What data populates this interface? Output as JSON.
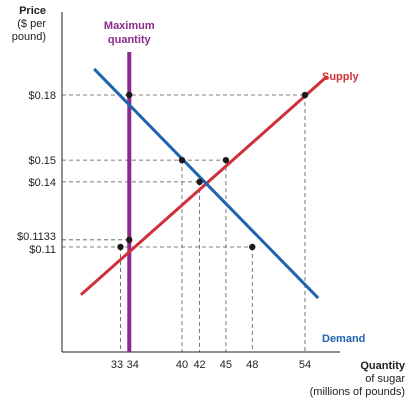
{
  "chart_data": {
    "type": "line",
    "xlabel": [
      "Quantity",
      "of sugar",
      "(millions of pounds)"
    ],
    "ylabel": [
      "Price",
      "($ per",
      "pound)"
    ],
    "xlim": [
      27,
      63
    ],
    "ylim": [
      0.08,
      0.195
    ],
    "x_ticks": [
      {
        "value": 33,
        "label": "33"
      },
      {
        "value": 34,
        "label": "34"
      },
      {
        "value": 40,
        "label": "40"
      },
      {
        "value": 42,
        "label": "42"
      },
      {
        "value": 45,
        "label": "45"
      },
      {
        "value": 48,
        "label": "48"
      },
      {
        "value": 54,
        "label": "54"
      }
    ],
    "y_ticks": [
      {
        "value": 0.18,
        "label": "$0.18"
      },
      {
        "value": 0.15,
        "label": "$0.15"
      },
      {
        "value": 0.14,
        "label": "$0.14"
      },
      {
        "value": 0.1133,
        "label": "$0.1133"
      },
      {
        "value": 0.11,
        "label": "$0.11"
      }
    ],
    "series": [
      {
        "name": "Supply",
        "color": "#d0303a",
        "x": [
          28.5,
          56.5
        ],
        "y": [
          0.088,
          0.1885
        ]
      },
      {
        "name": "Demand",
        "color": "#1d63b0",
        "x": [
          30,
          55.5
        ],
        "y": [
          0.192,
          0.0865
        ]
      }
    ],
    "vertical_line": {
      "name": [
        "Maximum",
        "quantity"
      ],
      "x": 34,
      "color": "#8a2a8a"
    },
    "points": [
      {
        "x": 54,
        "y": 0.18
      },
      {
        "x": 34,
        "y": 0.18
      },
      {
        "x": 40,
        "y": 0.15
      },
      {
        "x": 45,
        "y": 0.15
      },
      {
        "x": 42,
        "y": 0.14
      },
      {
        "x": 34,
        "y": 0.1133
      },
      {
        "x": 33,
        "y": 0.11
      },
      {
        "x": 48,
        "y": 0.11
      }
    ],
    "guides": [
      {
        "h": 0.18,
        "from": 0,
        "to": 54
      },
      {
        "h": 0.15,
        "from": 0,
        "to": 45
      },
      {
        "h": 0.14,
        "from": 0,
        "to": 42
      },
      {
        "h": 0.1133,
        "from": 0,
        "to": 34
      },
      {
        "h": 0.11,
        "from": 0,
        "to": 48
      },
      {
        "v": 33,
        "top": 0.11
      },
      {
        "v": 34,
        "top": 0.18
      },
      {
        "v": 40,
        "top": 0.15
      },
      {
        "v": 42,
        "top": 0.14
      },
      {
        "v": 45,
        "top": 0.15
      },
      {
        "v": 48,
        "top": 0.11
      },
      {
        "v": 54,
        "top": 0.18
      }
    ]
  }
}
